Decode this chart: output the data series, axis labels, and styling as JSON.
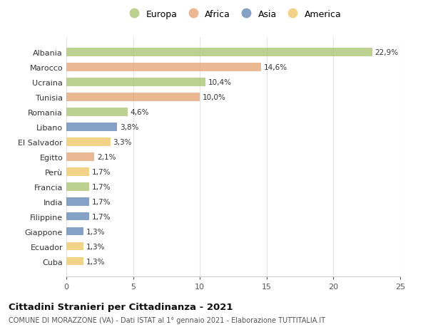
{
  "categories": [
    "Albania",
    "Marocco",
    "Ucraina",
    "Tunisia",
    "Romania",
    "Libano",
    "El Salvador",
    "Egitto",
    "Perù",
    "Francia",
    "India",
    "Filippine",
    "Giappone",
    "Ecuador",
    "Cuba"
  ],
  "values": [
    22.9,
    14.6,
    10.4,
    10.0,
    4.6,
    3.8,
    3.3,
    2.1,
    1.7,
    1.7,
    1.7,
    1.7,
    1.3,
    1.3,
    1.3
  ],
  "labels": [
    "22,9%",
    "14,6%",
    "10,4%",
    "10,0%",
    "4,6%",
    "3,8%",
    "3,3%",
    "2,1%",
    "1,7%",
    "1,7%",
    "1,7%",
    "1,7%",
    "1,3%",
    "1,3%",
    "1,3%"
  ],
  "continents": [
    "Europa",
    "Africa",
    "Europa",
    "Africa",
    "Europa",
    "Asia",
    "America",
    "Africa",
    "America",
    "Europa",
    "Asia",
    "Asia",
    "Asia",
    "America",
    "America"
  ],
  "colors": {
    "Europa": "#adc778",
    "Africa": "#e8a87c",
    "Asia": "#6b8cba",
    "America": "#f0c96e"
  },
  "title": "Cittadini Stranieri per Cittadinanza - 2021",
  "subtitle": "COMUNE DI MORAZZONE (VA) - Dati ISTAT al 1° gennaio 2021 - Elaborazione TUTTITALIA.IT",
  "xlim": [
    0,
    25
  ],
  "xticks": [
    0,
    5,
    10,
    15,
    20,
    25
  ],
  "background_color": "#ffffff",
  "grid_color": "#e5e5e5",
  "bar_alpha": 0.82,
  "figsize": [
    6.0,
    4.6
  ],
  "dpi": 100
}
